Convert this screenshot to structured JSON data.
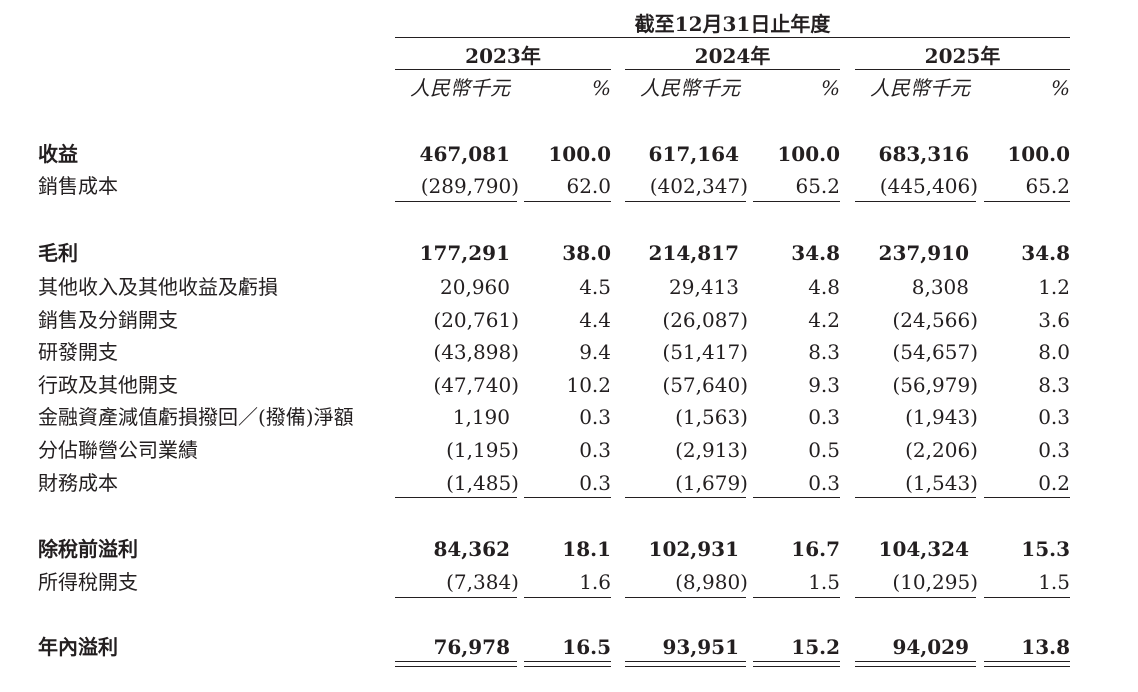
{
  "header": {
    "period": "截至12月31日止年度",
    "years": [
      "2023年",
      "2024年",
      "2025年"
    ],
    "unit_amount": "人民幣千元",
    "unit_pct": "%"
  },
  "rows": [
    {
      "label": "收益",
      "bold": true,
      "values": [
        "467,081",
        "100.0",
        "617,164",
        "100.0",
        "683,316",
        "100.0"
      ]
    },
    {
      "label": "銷售成本",
      "bold": false,
      "values": [
        "(289,790)",
        "62.0",
        "(402,347)",
        "65.2",
        "(445,406)",
        "65.2"
      ]
    },
    {
      "label": "毛利",
      "bold": true,
      "values": [
        "177,291",
        "38.0",
        "214,817",
        "34.8",
        "237,910",
        "34.8"
      ]
    },
    {
      "label": "其他收入及其他收益及虧損",
      "bold": false,
      "values": [
        "20,960",
        "4.5",
        "29,413",
        "4.8",
        "8,308",
        "1.2"
      ]
    },
    {
      "label": "銷售及分銷開支",
      "bold": false,
      "values": [
        "(20,761)",
        "4.4",
        "(26,087)",
        "4.2",
        "(24,566)",
        "3.6"
      ]
    },
    {
      "label": "研發開支",
      "bold": false,
      "values": [
        "(43,898)",
        "9.4",
        "(51,417)",
        "8.3",
        "(54,657)",
        "8.0"
      ]
    },
    {
      "label": "行政及其他開支",
      "bold": false,
      "values": [
        "(47,740)",
        "10.2",
        "(57,640)",
        "9.3",
        "(56,979)",
        "8.3"
      ]
    },
    {
      "label": "金融資產減值虧損撥回／(撥備)淨額",
      "bold": false,
      "values": [
        "1,190",
        "0.3",
        "(1,563)",
        "0.3",
        "(1,943)",
        "0.3"
      ]
    },
    {
      "label": "分佔聯營公司業績",
      "bold": false,
      "values": [
        "(1,195)",
        "0.3",
        "(2,913)",
        "0.5",
        "(2,206)",
        "0.3"
      ]
    },
    {
      "label": "財務成本",
      "bold": false,
      "values": [
        "(1,485)",
        "0.3",
        "(1,679)",
        "0.3",
        "(1,543)",
        "0.2"
      ]
    },
    {
      "label": "除稅前溢利",
      "bold": true,
      "values": [
        "84,362",
        "18.1",
        "102,931",
        "16.7",
        "104,324",
        "15.3"
      ]
    },
    {
      "label": "所得稅開支",
      "bold": false,
      "values": [
        "(7,384)",
        "1.6",
        "(8,980)",
        "1.5",
        "(10,295)",
        "1.5"
      ]
    },
    {
      "label": "年內溢利",
      "bold": true,
      "values": [
        "76,978",
        "16.5",
        "93,951",
        "15.2",
        "94,029",
        "13.8"
      ]
    }
  ]
}
